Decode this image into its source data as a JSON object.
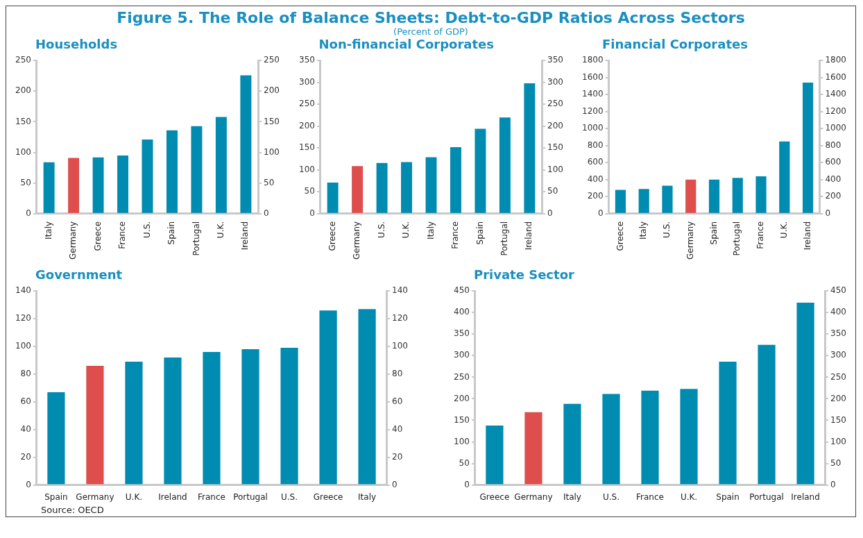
{
  "chart_data": [
    {
      "type": "bar",
      "title": "Households",
      "annotations": [
        "Figure 5. The Role of Balance Sheets: Debt-to-GDP Ratios Across Sectors",
        "(Percent of GDP)"
      ],
      "categories": [
        "Italy",
        "Germany",
        "Greece",
        "France",
        "U.S.",
        "Spain",
        "Portugal",
        "U.K.",
        "Ireland"
      ],
      "values": [
        84,
        91,
        92,
        95,
        121,
        136,
        143,
        158,
        226
      ],
      "colors": [
        "#008bb0",
        "#dd4e4c",
        "#008bb0",
        "#008bb0",
        "#008bb0",
        "#008bb0",
        "#008bb0",
        "#008bb0",
        "#008bb0"
      ],
      "ylim": [
        0,
        250
      ],
      "yticks": [
        0,
        50,
        100,
        150,
        200,
        250
      ],
      "y2lim": [
        0,
        250
      ],
      "y2ticks": [
        0,
        50,
        100,
        150,
        200,
        250
      ]
    },
    {
      "type": "bar",
      "title": "Non-financial Corporates",
      "categories": [
        "Greece",
        "Germany",
        "U.S.",
        "U.K.",
        "Italy",
        "France",
        "Spain",
        "Portugal",
        "Ireland"
      ],
      "values": [
        71,
        109,
        116,
        118,
        129,
        152,
        194,
        220,
        298
      ],
      "colors": [
        "#008bb0",
        "#dd4e4c",
        "#008bb0",
        "#008bb0",
        "#008bb0",
        "#008bb0",
        "#008bb0",
        "#008bb0",
        "#008bb0"
      ],
      "ylim": [
        0,
        350
      ],
      "yticks": [
        0,
        50,
        100,
        150,
        200,
        250,
        300,
        350
      ],
      "y2lim": [
        0,
        350
      ],
      "y2ticks": [
        0,
        50,
        100,
        150,
        200,
        250,
        300,
        350
      ]
    },
    {
      "type": "bar",
      "title": "Financial Corporates",
      "categories": [
        "Greece",
        "Italy",
        "U.S.",
        "Germany",
        "Spain",
        "Portugal",
        "France",
        "U.K.",
        "Ireland"
      ],
      "values": [
        280,
        290,
        330,
        400,
        400,
        420,
        440,
        850,
        1540
      ],
      "colors": [
        "#008bb0",
        "#008bb0",
        "#008bb0",
        "#dd4e4c",
        "#008bb0",
        "#008bb0",
        "#008bb0",
        "#008bb0",
        "#008bb0"
      ],
      "ylim": [
        0,
        1800
      ],
      "yticks": [
        0,
        200,
        400,
        600,
        800,
        1000,
        1200,
        1400,
        1600,
        1800
      ],
      "y2lim": [
        0,
        1800
      ],
      "y2ticks": [
        0,
        200,
        400,
        600,
        800,
        1000,
        1200,
        1400,
        1600,
        1800
      ]
    },
    {
      "type": "bar",
      "title": "Government",
      "annotations": [
        "Source: OECD"
      ],
      "categories": [
        "Spain",
        "Germany",
        "U.K.",
        "Ireland",
        "France",
        "Portugal",
        "U.S.",
        "Greece",
        "Italy"
      ],
      "values": [
        67,
        86,
        89,
        92,
        96,
        98,
        99,
        126,
        127
      ],
      "colors": [
        "#008bb0",
        "#dd4e4c",
        "#008bb0",
        "#008bb0",
        "#008bb0",
        "#008bb0",
        "#008bb0",
        "#008bb0",
        "#008bb0"
      ],
      "ylim": [
        0,
        140
      ],
      "yticks": [
        0,
        20,
        40,
        60,
        80,
        100,
        120,
        140
      ],
      "y2lim": [
        0,
        140
      ],
      "y2ticks": [
        0,
        20,
        40,
        60,
        80,
        100,
        120,
        140
      ]
    },
    {
      "type": "bar",
      "title": "Private Sector",
      "categories": [
        "Greece",
        "Germany",
        "Italy",
        "U.S.",
        "France",
        "U.K.",
        "Spain",
        "Portugal",
        "Ireland"
      ],
      "values": [
        138,
        169,
        188,
        211,
        219,
        223,
        286,
        325,
        423
      ],
      "colors": [
        "#008bb0",
        "#dd4e4c",
        "#008bb0",
        "#008bb0",
        "#008bb0",
        "#008bb0",
        "#008bb0",
        "#008bb0",
        "#008bb0"
      ],
      "ylim": [
        0,
        450
      ],
      "yticks": [
        0,
        50,
        100,
        150,
        200,
        250,
        300,
        350,
        400,
        450
      ],
      "y2lim": [
        0,
        450
      ],
      "y2ticks": [
        0,
        50,
        100,
        150,
        200,
        250,
        300,
        350,
        400,
        450
      ]
    }
  ]
}
